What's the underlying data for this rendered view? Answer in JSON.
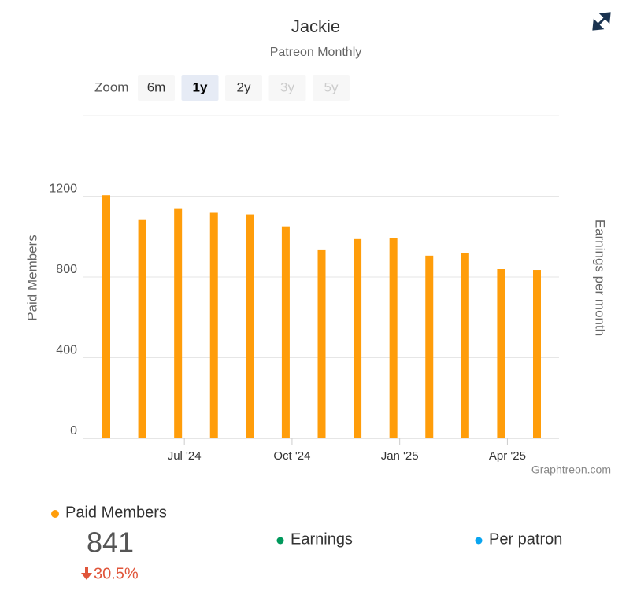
{
  "chart_data": {
    "type": "bar",
    "title": "Jackie",
    "subtitle": "Patreon Monthly",
    "zoom": {
      "label": "Zoom",
      "options": [
        "6m",
        "1y",
        "2y",
        "3y",
        "5y"
      ],
      "selected": "1y",
      "disabled": [
        "3y",
        "5y"
      ]
    },
    "y_label": "Paid Members",
    "y2_label": "Earnings per month",
    "credit": "Graphtreon.com",
    "categories": [
      null,
      null,
      "Jul '24",
      null,
      null,
      "Oct '24",
      null,
      null,
      "Jan '25",
      null,
      null,
      "Apr '25",
      null
    ],
    "series": [
      {
        "name": "Paid Members",
        "color": "#ff9d0a",
        "values": [
          1205,
          1086,
          1141,
          1118,
          1110,
          1051,
          933,
          988,
          992,
          906,
          918,
          839,
          835
        ]
      }
    ],
    "ylim": [
      0,
      1600
    ],
    "yticks": [
      0,
      400,
      800,
      1200
    ],
    "grid": true,
    "legend_extra": [
      {
        "name": "Earnings",
        "color": "#00995c"
      },
      {
        "name": "Per patron",
        "color": "#0aa5f0"
      }
    ],
    "current": 841,
    "change": -30.5,
    "change_label": "30.5%"
  }
}
